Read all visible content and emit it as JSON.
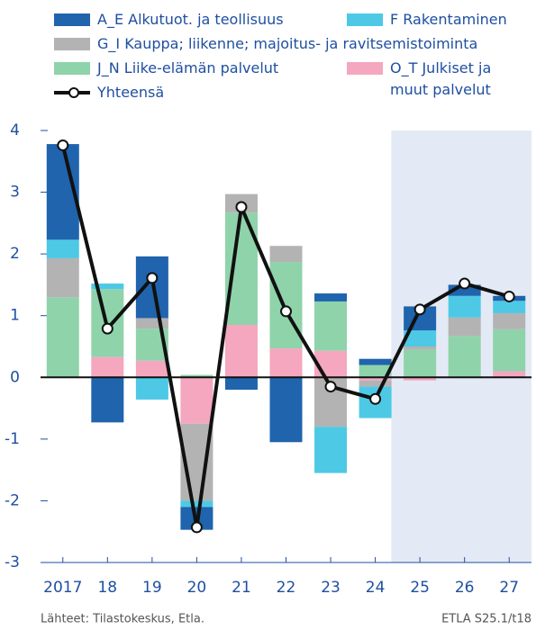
{
  "chart_data": {
    "type": "stacked_bar_line",
    "categories": [
      "2017",
      "18",
      "19",
      "20",
      "21",
      "22",
      "23",
      "24",
      "25",
      "26",
      "27"
    ],
    "series": [
      {
        "name": "A_E Alkutuot. ja teollisuus",
        "color": "#1f64ad",
        "values": [
          1.55,
          -0.73,
          1.0,
          -0.37,
          -0.2,
          -1.05,
          0.13,
          0.1,
          0.39,
          0.18,
          0.08
        ]
      },
      {
        "name": "F Rakentaminen",
        "color": "#4dc9e6",
        "values": [
          0.3,
          0.09,
          -0.36,
          -0.1,
          0,
          0,
          -0.75,
          -0.51,
          0.26,
          0.35,
          0.2
        ]
      },
      {
        "name": "G_I Kauppa; liikenne; majoitus- ja ravitsemistoiminta",
        "color": "#b3b3b3",
        "values": [
          0.63,
          0,
          0.17,
          -1.25,
          0.3,
          0.26,
          -0.8,
          -0.1,
          0.05,
          0.3,
          0.26
        ]
      },
      {
        "name": "J_N Liike-elämän palvelut",
        "color": "#8fd3aa",
        "values": [
          1.3,
          1.1,
          0.52,
          0.04,
          1.82,
          1.4,
          0.8,
          0.2,
          0.45,
          0.67,
          0.68
        ]
      },
      {
        "name": "O_T Julkiset ja muut palvelut",
        "color": "#f4a7bf",
        "values": [
          0,
          0.33,
          0.27,
          -0.75,
          0.85,
          0.47,
          0.43,
          -0.05,
          -0.05,
          0,
          0.1
        ]
      }
    ],
    "line": {
      "name": "Yhteensä",
      "color": "#111111",
      "values": [
        3.76,
        0.79,
        1.61,
        -2.43,
        2.76,
        1.07,
        -0.15,
        -0.35,
        1.1,
        1.52,
        1.31
      ]
    },
    "ylim": [
      -3,
      4
    ],
    "yticks": [
      -3,
      -2,
      -1,
      0,
      1,
      2,
      3,
      4
    ],
    "forecast_from": "25",
    "forecast_color": "#e3eaf5",
    "source": "Lähteet: Tilastokeskus, Etla.",
    "note": "ETLA S25.1/t18"
  }
}
